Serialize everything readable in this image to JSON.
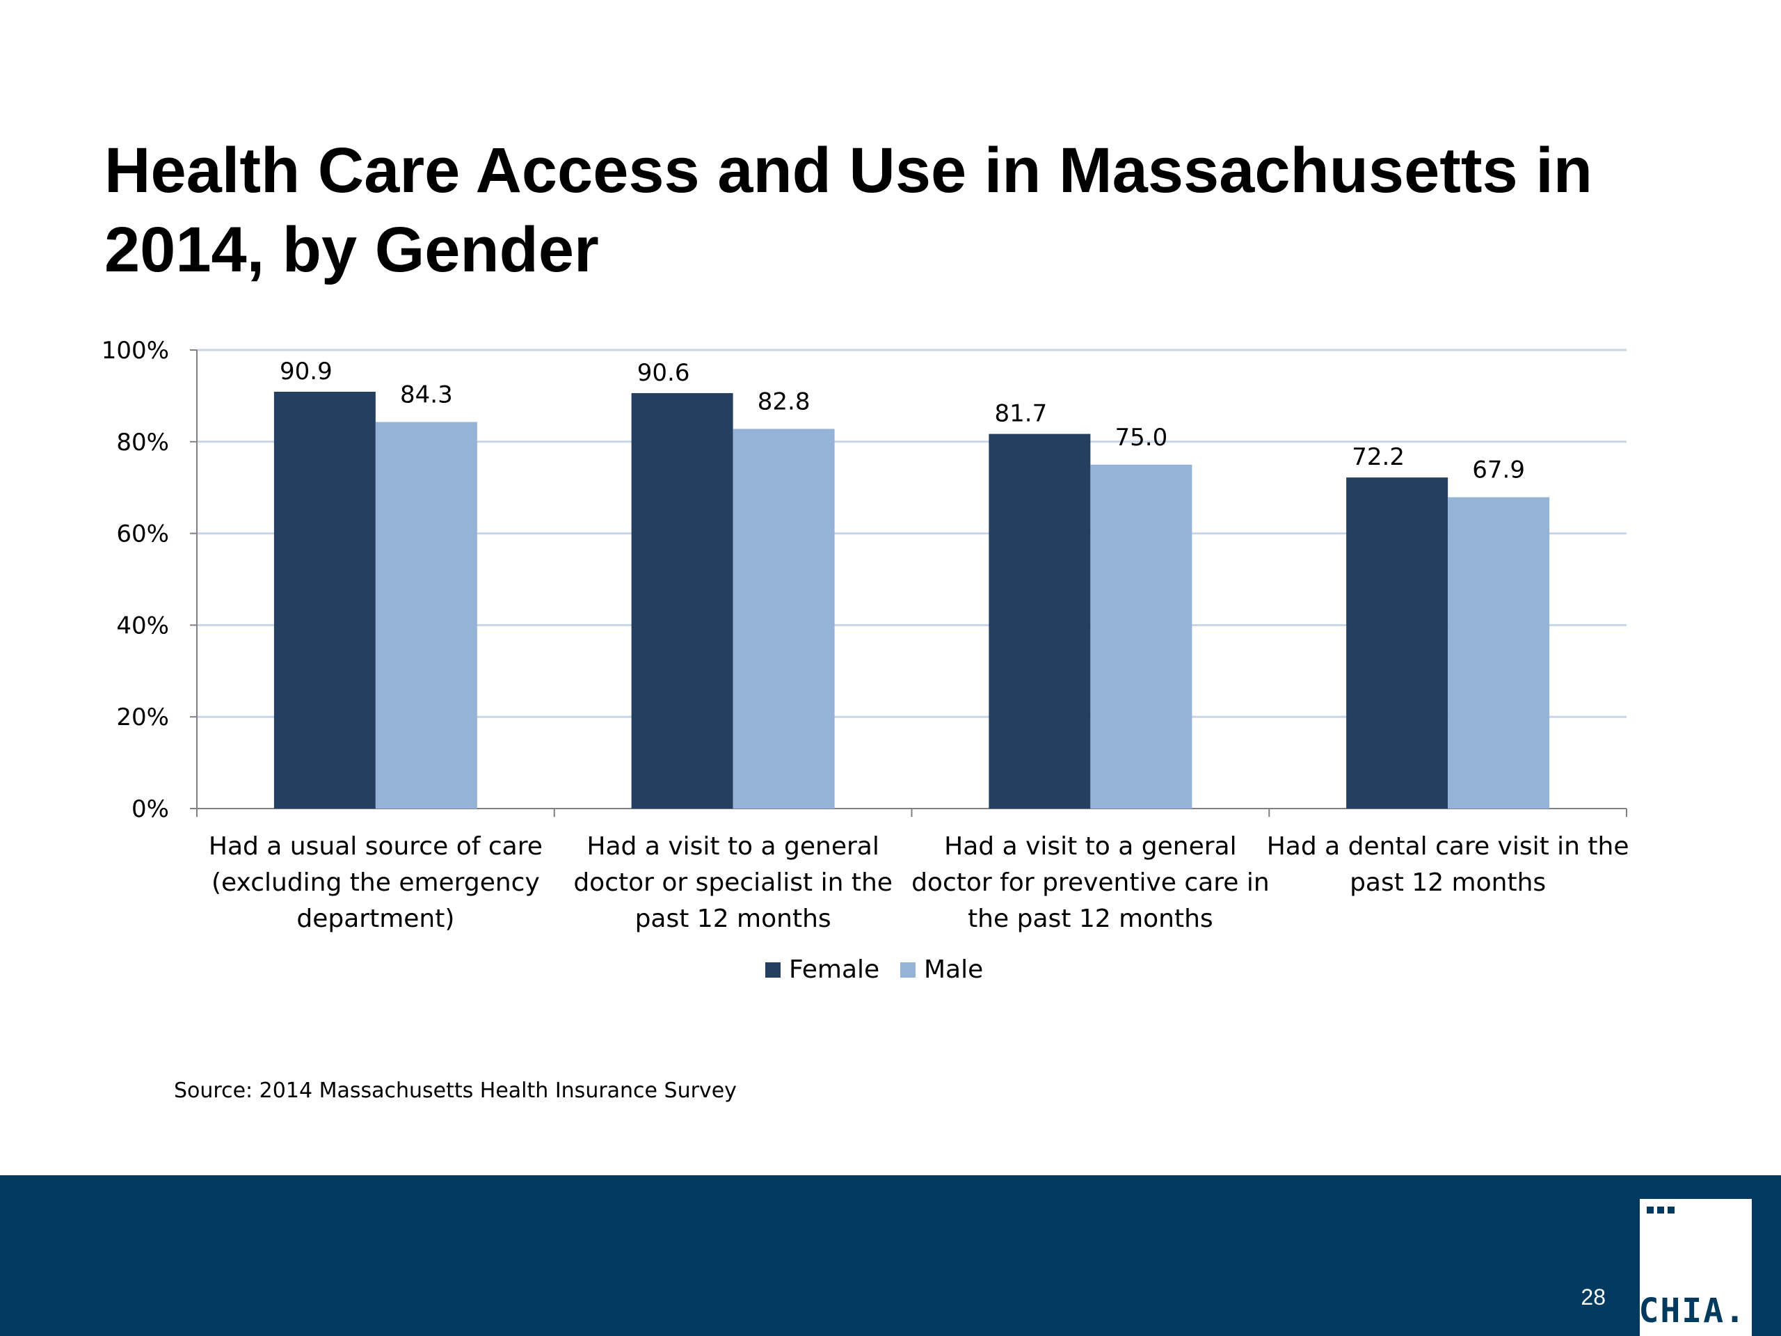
{
  "slide": {
    "title": "Health Care Access and Use in Massachusetts in 2014, by Gender",
    "source": "Source:  2014 Massachusetts Health Insurance Survey",
    "page_number": "28",
    "logo_text": "CHIA."
  },
  "colors": {
    "female": "#243f60",
    "male": "#95b3d7",
    "gridline": "#c6d6ea",
    "footer": "#003a5f",
    "axis": "#808080"
  },
  "chart_data": {
    "type": "bar",
    "title": "",
    "xlabel": "",
    "ylabel": "",
    "ylim": [
      0,
      100
    ],
    "yticks": [
      "0%",
      "20%",
      "40%",
      "60%",
      "80%",
      "100%"
    ],
    "grid": true,
    "legend_position": "bottom",
    "categories": [
      [
        "Had a usual source of care",
        "(excluding the emergency",
        "department)"
      ],
      [
        "Had a visit to a general",
        "doctor or specialist in the",
        "past 12 months"
      ],
      [
        "Had a visit to a general",
        "doctor for preventive care in",
        "the past 12 months"
      ],
      [
        "Had a dental care visit in the",
        "past 12 months"
      ]
    ],
    "series": [
      {
        "name": "Female",
        "values": [
          90.9,
          90.6,
          81.7,
          72.2
        ],
        "labels": [
          "90.9",
          "90.6",
          "81.7",
          "72.2"
        ]
      },
      {
        "name": "Male",
        "values": [
          84.3,
          82.8,
          75.0,
          67.9
        ],
        "labels": [
          "84.3",
          "82.8",
          "75.0",
          "67.9"
        ]
      }
    ]
  }
}
